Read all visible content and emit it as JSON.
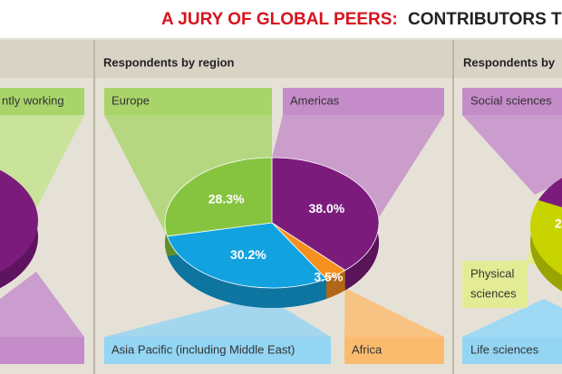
{
  "header": {
    "title_lead": "A JURY OF GLOBAL PEERS:",
    "title_rest": "CONTRIBUTORS TO THE A"
  },
  "left_panel": {
    "labels": [
      "ntly working"
    ]
  },
  "right_panel": {
    "title": "Respondents by",
    "labels": [
      "Social sciences",
      [
        "Physical",
        "sciences"
      ],
      "Life sciences"
    ],
    "visible_value_label": "2"
  },
  "chart_data": {
    "type": "pie",
    "title": "Respondents by region",
    "categories": [
      "Americas",
      "Africa",
      "Asia Pacific (including Middle East)",
      "Europe"
    ],
    "values": [
      38.0,
      3.5,
      30.2,
      28.3
    ],
    "value_labels": [
      "38.0%",
      "3.5%",
      "30.2%",
      "28.3%"
    ],
    "colors": [
      "#7b1c7d",
      "#f5901e",
      "#13a2e0",
      "#86c440"
    ],
    "label_colors": [
      "#c48cc8",
      "#fbbb6e",
      "#93d5f3",
      "#a9d46a"
    ]
  }
}
